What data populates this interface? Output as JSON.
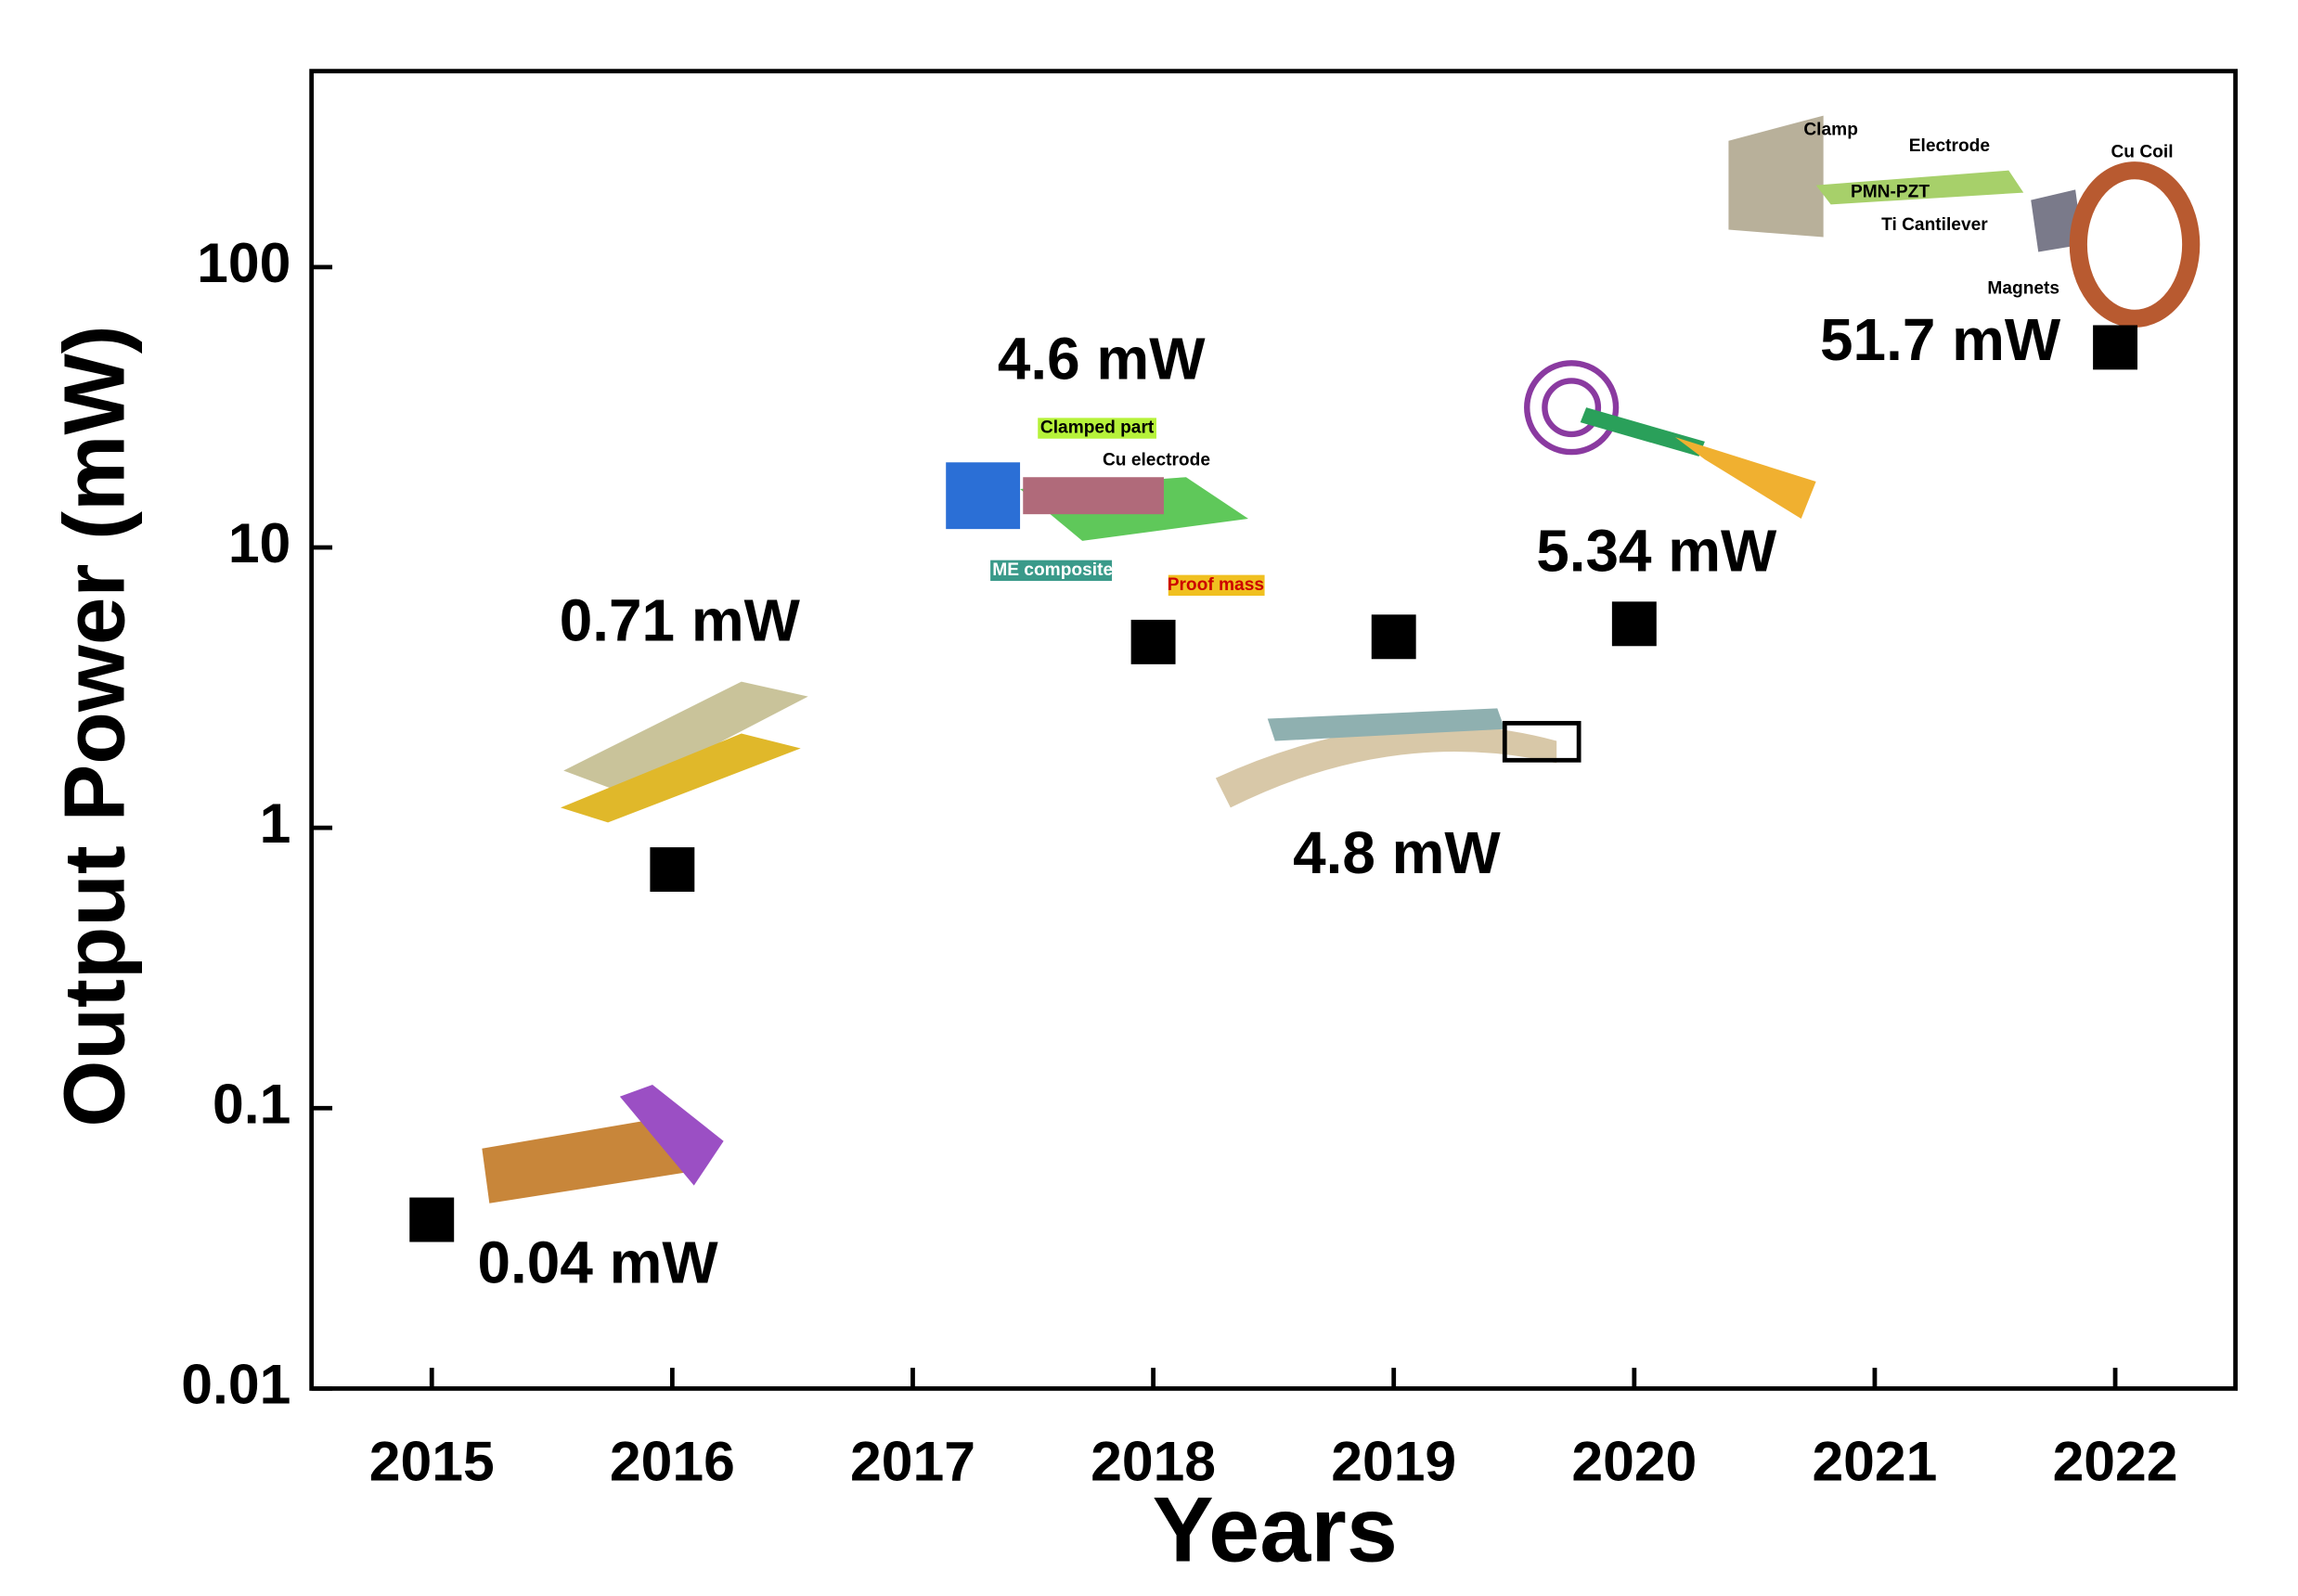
{
  "chart_data": {
    "type": "scatter",
    "x_label": "Years",
    "y_label": "Output Power (mW)",
    "x": [
      2015,
      2016,
      2018,
      2019,
      2020,
      2022
    ],
    "values": [
      0.04,
      0.71,
      4.6,
      4.8,
      5.34,
      51.7
    ],
    "value_labels": [
      "0.04 mW",
      "0.71 mW",
      "4.6 mW",
      "4.8 mW",
      "5.34 mW",
      "51.7 mW"
    ],
    "color": "#000000",
    "xlim": [
      2014.5,
      2022.5
    ],
    "xticks": [
      2015,
      2016,
      2017,
      2018,
      2019,
      2020,
      2021,
      2022
    ],
    "ylim": [
      0.01,
      500
    ],
    "yticks": [
      0.01,
      0.1,
      1,
      10,
      100
    ],
    "y_scale": "log",
    "grid": false,
    "inset_labels": [
      "Clamped part",
      "Cu electrode",
      "ME composite",
      "Proof mass",
      "Clamp",
      "Electrode",
      "PMN-PZT",
      "Ti Cantilever",
      "Magnets",
      "Cu Coil"
    ]
  }
}
